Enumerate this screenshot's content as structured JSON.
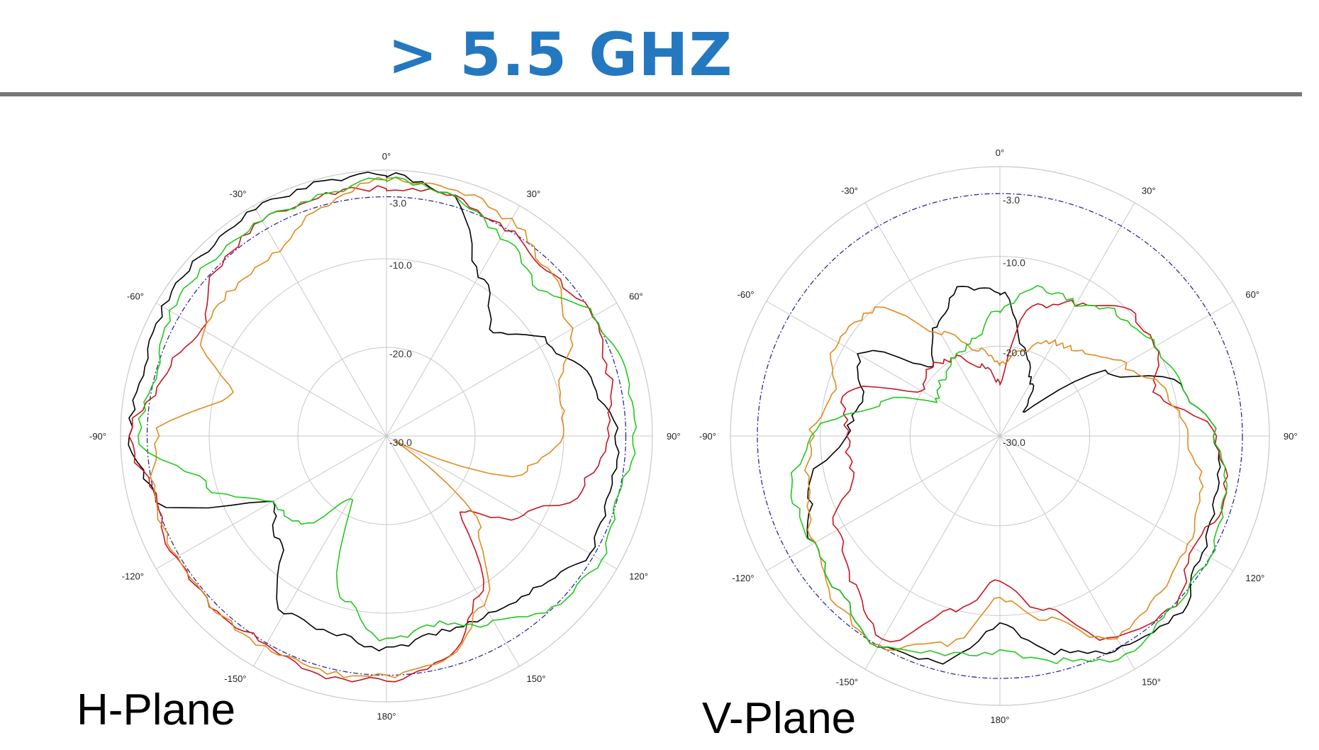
{
  "title": "> 5.5 GHZ",
  "colors": {
    "title": "#2478c0",
    "rule": "#777777",
    "grid": "#c8c8c8",
    "reference": "#2a2aa0",
    "black": "#000000",
    "red": "#c8141e",
    "orange": "#e08a1e",
    "green": "#22c81e"
  },
  "chart_data": [
    {
      "type": "polar-line",
      "plot_label": "H-Plane",
      "r_range_db": [
        -30,
        0
      ],
      "radial_ticks": [
        "-3.0",
        "-10.0",
        "-20.0",
        "-30.0"
      ],
      "radial_tick_values": [
        -3,
        -10,
        -20,
        -30
      ],
      "angle_ticks": [
        "0°",
        "30°",
        "60°",
        "90°",
        "120°",
        "150°",
        "180°",
        "-150°",
        "-120°",
        "-90°",
        "-60°",
        "-30°"
      ],
      "reference_circle_db": -3,
      "angles_deg": [
        0,
        15,
        30,
        45,
        60,
        75,
        90,
        105,
        120,
        135,
        150,
        165,
        180,
        -165,
        -150,
        -135,
        -120,
        -105,
        -90,
        -75,
        -60,
        -45,
        -30,
        -15
      ],
      "series": [
        {
          "color": "black",
          "values_db": [
            -0.5,
            -2,
            -9,
            -13,
            -9,
            -6,
            -4,
            -4,
            -3.5,
            -6,
            -7,
            -7,
            -6,
            -7,
            -7,
            -13,
            -15,
            -3,
            -1,
            -1.5,
            -1,
            -0.8,
            -0.5,
            -0.5
          ]
        },
        {
          "color": "red",
          "values_db": [
            -2,
            -2,
            -3,
            -4,
            -3,
            -4,
            -5,
            -7,
            -12,
            -18,
            -9,
            -4,
            -2.5,
            -2,
            -3,
            -2.5,
            -2.5,
            -3,
            -1,
            -4,
            -6,
            -3,
            -2,
            -2
          ]
        },
        {
          "color": "orange",
          "values_db": [
            -1,
            -1,
            -2,
            -4,
            -6,
            -10,
            -10,
            -14,
            -29,
            -15,
            -8,
            -4,
            -3,
            -2.5,
            -2.5,
            -2.5,
            -2.5,
            -3,
            -4,
            -12,
            -6,
            -6,
            -6,
            -3
          ]
        },
        {
          "color": "green",
          "values_db": [
            -1,
            -2,
            -4,
            -6,
            -3,
            -2,
            -2,
            -3,
            -2,
            -3,
            -6,
            -8,
            -7,
            -11,
            -22,
            -16,
            -15,
            -9,
            -2,
            -3,
            -2,
            -2,
            -2,
            -2
          ]
        }
      ]
    },
    {
      "type": "polar-line",
      "plot_label": "V-Plane",
      "r_range_db": [
        -30,
        0
      ],
      "radial_ticks": [
        "-3.0",
        "-10.0",
        "-20.0",
        "-30.0"
      ],
      "radial_tick_values": [
        -3,
        -10,
        -20,
        -30
      ],
      "angle_ticks": [
        "0°",
        "30°",
        "60°",
        "90°",
        "120°",
        "150°",
        "180°",
        "-150°",
        "-120°",
        "-90°",
        "-60°",
        "-30°"
      ],
      "reference_circle_db": -3,
      "angles_deg": [
        0,
        15,
        30,
        45,
        60,
        75,
        90,
        105,
        120,
        135,
        150,
        165,
        180,
        -165,
        -150,
        -135,
        -120,
        -105,
        -90,
        -75,
        -60,
        -45,
        -30,
        -15
      ],
      "series": [
        {
          "color": "black",
          "values_db": [
            -14,
            -20,
            -23,
            -26,
            -16,
            -9,
            -6,
            -5,
            -4,
            -2,
            -3,
            -5,
            -9,
            -4,
            -3,
            -5,
            -6,
            -8,
            -13,
            -14,
            -12,
            -19,
            -16,
            -13
          ]
        },
        {
          "color": "red",
          "values_db": [
            -24,
            -15,
            -13,
            -10,
            -10,
            -12,
            -6,
            -4,
            -5,
            -3,
            -4,
            -10,
            -14,
            -10,
            -4,
            -7,
            -9,
            -13,
            -13,
            -12,
            -20,
            -19,
            -20,
            -22
          ]
        },
        {
          "color": "orange",
          "values_db": [
            -22,
            -20,
            -18,
            -17,
            -14,
            -11,
            -9,
            -7,
            -6,
            -5,
            -4,
            -9,
            -12,
            -6,
            -3,
            -4,
            -6,
            -8,
            -9,
            -11,
            -9,
            -10,
            -17,
            -20
          ]
        },
        {
          "color": "green",
          "values_db": [
            -16,
            -13,
            -13,
            -11,
            -10,
            -9,
            -6,
            -4,
            -3,
            -3,
            -2,
            -4,
            -6,
            -5,
            -3,
            -5,
            -6,
            -6,
            -9,
            -16,
            -22,
            -21,
            -20,
            -19
          ]
        }
      ]
    }
  ]
}
